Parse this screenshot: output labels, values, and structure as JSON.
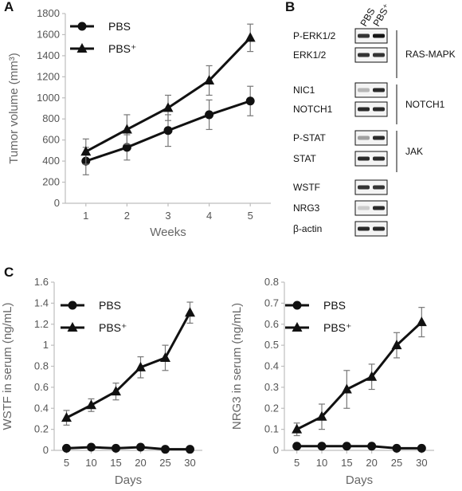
{
  "panel_labels": {
    "a": "A",
    "b": "B",
    "c": "C"
  },
  "chart_data": [
    {
      "id": "tumor",
      "type": "line",
      "xlabel": "Weeks",
      "ylabel": "Tumor volume (mm³)",
      "x": [
        1,
        2,
        3,
        4,
        5
      ],
      "xticks": [
        1,
        2,
        3,
        4,
        5
      ],
      "xlim": [
        0.5,
        5.5
      ],
      "ylim": [
        0,
        1800
      ],
      "yticks": [
        0,
        200,
        400,
        600,
        800,
        1000,
        1200,
        1400,
        1600,
        1800
      ],
      "legend_position": "top-left",
      "series": [
        {
          "name": "PBS",
          "marker": "circle",
          "values": [
            400,
            530,
            690,
            840,
            970
          ],
          "errors": [
            130,
            120,
            150,
            140,
            140
          ]
        },
        {
          "name": "PBS⁺",
          "marker": "triangle",
          "values": [
            490,
            700,
            905,
            1165,
            1570
          ],
          "errors": [
            120,
            140,
            120,
            140,
            130
          ]
        }
      ]
    },
    {
      "id": "wstf",
      "type": "line",
      "xlabel": "Days",
      "ylabel": "WSTF in serum (ng/mL)",
      "x": [
        5,
        10,
        15,
        20,
        25,
        30
      ],
      "xticks": [
        5,
        10,
        15,
        20,
        25,
        30
      ],
      "xlim": [
        2.5,
        32.5
      ],
      "ylim": [
        0,
        1.6
      ],
      "yticks": [
        0,
        0.2,
        0.4,
        0.6,
        0.8,
        1,
        1.2,
        1.4,
        1.6
      ],
      "legend_position": "top-left",
      "series": [
        {
          "name": "PBS",
          "marker": "circle",
          "values": [
            0.02,
            0.03,
            0.02,
            0.03,
            0.01,
            0.01
          ],
          "errors": [
            0,
            0,
            0,
            0,
            0,
            0
          ]
        },
        {
          "name": "PBS⁺",
          "marker": "triangle",
          "values": [
            0.31,
            0.43,
            0.56,
            0.79,
            0.88,
            1.31
          ],
          "errors": [
            0.07,
            0.06,
            0.08,
            0.1,
            0.12,
            0.1
          ]
        }
      ]
    },
    {
      "id": "nrg3",
      "type": "line",
      "xlabel": "Days",
      "ylabel": "NRG3 in serum (ng/mL)",
      "x": [
        5,
        10,
        15,
        20,
        25,
        30
      ],
      "xticks": [
        5,
        10,
        15,
        20,
        25,
        30
      ],
      "xlim": [
        2.5,
        32.5
      ],
      "ylim": [
        0,
        0.8
      ],
      "yticks": [
        0,
        0.1,
        0.2,
        0.3,
        0.4,
        0.5,
        0.6,
        0.7,
        0.8
      ],
      "legend_position": "top-left",
      "series": [
        {
          "name": "PBS",
          "marker": "circle",
          "values": [
            0.02,
            0.02,
            0.02,
            0.02,
            0.01,
            0.01
          ],
          "errors": [
            0,
            0,
            0,
            0,
            0,
            0
          ]
        },
        {
          "name": "PBS⁺",
          "marker": "triangle",
          "values": [
            0.1,
            0.16,
            0.29,
            0.35,
            0.5,
            0.61
          ],
          "errors": [
            0.03,
            0.06,
            0.09,
            0.06,
            0.06,
            0.07
          ]
        }
      ]
    }
  ],
  "western_blot": {
    "lanes": [
      "PBS",
      "PBS⁺"
    ],
    "rows": [
      {
        "label": "P-ERK1/2",
        "intensity": [
          0.85,
          1.0
        ]
      },
      {
        "label": "ERK1/2",
        "intensity": [
          0.85,
          0.85
        ]
      },
      {
        "label": "NIC1",
        "intensity": [
          0.25,
          0.9
        ]
      },
      {
        "label": "NOTCH1",
        "intensity": [
          0.9,
          0.9
        ]
      },
      {
        "label": "P-STAT",
        "intensity": [
          0.35,
          0.9
        ]
      },
      {
        "label": "STAT",
        "intensity": [
          0.9,
          0.9
        ]
      },
      {
        "label": "WSTF",
        "intensity": [
          0.85,
          0.85
        ]
      },
      {
        "label": "NRG3",
        "intensity": [
          0.15,
          0.9
        ]
      },
      {
        "label": "β-actin",
        "intensity": [
          0.9,
          0.9
        ]
      }
    ],
    "pathways": [
      "RAS-MAPK",
      "NOTCH1",
      "JAK"
    ]
  }
}
